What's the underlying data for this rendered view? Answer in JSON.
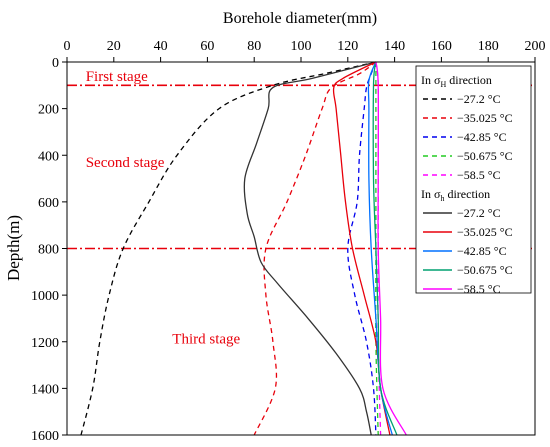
{
  "chart_data": {
    "type": "line",
    "xlabel": "Borehole diameter(mm)",
    "ylabel": "Depth(m)",
    "xlim": [
      0,
      200
    ],
    "ylim": [
      0,
      1600
    ],
    "x_axis_position": "top",
    "y_axis_inverted": true,
    "x_ticks": [
      "0",
      "20",
      "40",
      "60",
      "80",
      "100",
      "120",
      "140",
      "160",
      "180",
      "200"
    ],
    "y_ticks": [
      "0",
      "200",
      "400",
      "600",
      "800",
      "1000",
      "1200",
      "1400",
      "1600"
    ],
    "grid": false,
    "legend_position": "top-right",
    "legend_groups": [
      {
        "title_main": "In σ",
        "title_sub": "H",
        "title_end": " direction",
        "linestyle": "dashed"
      },
      {
        "title_main": "In σ",
        "title_sub": "h",
        "title_end": " direction",
        "linestyle": "solid"
      }
    ],
    "stage_lines": [
      {
        "depth": 100,
        "color": "#e8000b"
      },
      {
        "depth": 800,
        "color": "#e8000b"
      }
    ],
    "stage_labels": [
      {
        "text": "First stage",
        "x": 8,
        "y": 60
      },
      {
        "text": "Second stage",
        "x": 8,
        "y": 430
      },
      {
        "text": "Third stage",
        "x": 45,
        "y": 1185
      }
    ],
    "series": [
      {
        "name": "−27.2 °C",
        "group": "H",
        "color": "#000000",
        "dash": true,
        "points": [
          [
            132,
            0
          ],
          [
            110,
            50
          ],
          [
            88,
            100
          ],
          [
            65,
            200
          ],
          [
            47,
            400
          ],
          [
            35,
            600
          ],
          [
            24,
            800
          ],
          [
            18,
            1000
          ],
          [
            14,
            1200
          ],
          [
            11,
            1400
          ],
          [
            6,
            1600
          ]
        ]
      },
      {
        "name": "−35.025 °C",
        "group": "H",
        "color": "#e8000b",
        "dash": true,
        "points": [
          [
            132,
            0
          ],
          [
            125,
            50
          ],
          [
            113,
            110
          ],
          [
            109,
            200
          ],
          [
            102,
            400
          ],
          [
            94,
            600
          ],
          [
            85,
            800
          ],
          [
            85,
            1000
          ],
          [
            88,
            1200
          ],
          [
            89,
            1400
          ],
          [
            80,
            1600
          ]
        ]
      },
      {
        "name": "−42.85 °C",
        "group": "H",
        "color": "#0000ee",
        "dash": true,
        "points": [
          [
            132,
            0
          ],
          [
            130,
            50
          ],
          [
            128,
            110
          ],
          [
            127,
            200
          ],
          [
            125,
            400
          ],
          [
            124,
            600
          ],
          [
            120,
            800
          ],
          [
            123,
            1000
          ],
          [
            128,
            1200
          ],
          [
            131,
            1400
          ],
          [
            132,
            1600
          ]
        ]
      },
      {
        "name": "−50.675 °C",
        "group": "H",
        "color": "#22cc22",
        "dash": true,
        "points": [
          [
            132,
            0
          ],
          [
            132,
            100
          ],
          [
            132,
            400
          ],
          [
            132,
            800
          ],
          [
            132,
            1200
          ],
          [
            133,
            1600
          ]
        ]
      },
      {
        "name": "−58.5 °C",
        "group": "H",
        "color": "#ff00ff",
        "dash": true,
        "points": [
          [
            132,
            0
          ],
          [
            133,
            100
          ],
          [
            133,
            400
          ],
          [
            133,
            800
          ],
          [
            133,
            1200
          ],
          [
            134,
            1600
          ]
        ]
      },
      {
        "name": "−27.2 °C",
        "group": "h",
        "color": "#333333",
        "dash": false,
        "points": [
          [
            132,
            0
          ],
          [
            105,
            70
          ],
          [
            88,
            110
          ],
          [
            86,
            200
          ],
          [
            81,
            350
          ],
          [
            76,
            500
          ],
          [
            77,
            650
          ],
          [
            80,
            750
          ],
          [
            83,
            860
          ],
          [
            90,
            950
          ],
          [
            103,
            1100
          ],
          [
            115,
            1250
          ],
          [
            125,
            1400
          ],
          [
            128,
            1500
          ],
          [
            130,
            1600
          ]
        ]
      },
      {
        "name": "−35.025 °C",
        "group": "h",
        "color": "#e8000b",
        "dash": false,
        "points": [
          [
            132,
            0
          ],
          [
            118,
            70
          ],
          [
            114,
            110
          ],
          [
            115,
            200
          ],
          [
            117,
            400
          ],
          [
            119,
            600
          ],
          [
            122,
            800
          ],
          [
            127,
            1000
          ],
          [
            132,
            1200
          ],
          [
            134,
            1400
          ],
          [
            138,
            1600
          ]
        ]
      },
      {
        "name": "−42.85 °C",
        "group": "h",
        "color": "#0070ff",
        "dash": false,
        "points": [
          [
            132,
            0
          ],
          [
            129,
            80
          ],
          [
            129,
            200
          ],
          [
            129,
            500
          ],
          [
            130,
            800
          ],
          [
            132,
            1100
          ],
          [
            134,
            1400
          ],
          [
            139,
            1600
          ]
        ]
      },
      {
        "name": "−50.675 °C",
        "group": "h",
        "color": "#00a070",
        "dash": false,
        "points": [
          [
            132,
            0
          ],
          [
            131,
            100
          ],
          [
            131,
            500
          ],
          [
            132,
            800
          ],
          [
            133,
            1100
          ],
          [
            134,
            1400
          ],
          [
            141,
            1600
          ]
        ]
      },
      {
        "name": "−58.5 °C",
        "group": "h",
        "color": "#ff00ff",
        "dash": false,
        "points": [
          [
            132,
            0
          ],
          [
            133,
            100
          ],
          [
            133,
            500
          ],
          [
            133,
            800
          ],
          [
            134,
            1100
          ],
          [
            135,
            1400
          ],
          [
            145,
            1600
          ]
        ]
      }
    ]
  }
}
